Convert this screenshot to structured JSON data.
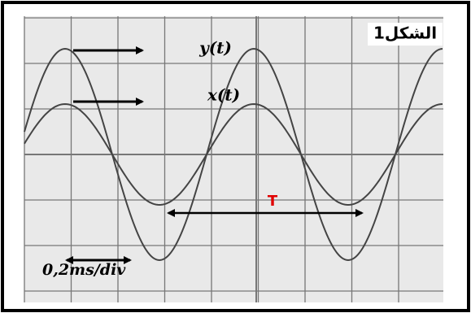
{
  "figure": {
    "label": "الشكل1",
    "curves": [
      "y(t)",
      "x(t)"
    ],
    "period_label": "T",
    "scale_label": "0,2ms/div"
  }
}
